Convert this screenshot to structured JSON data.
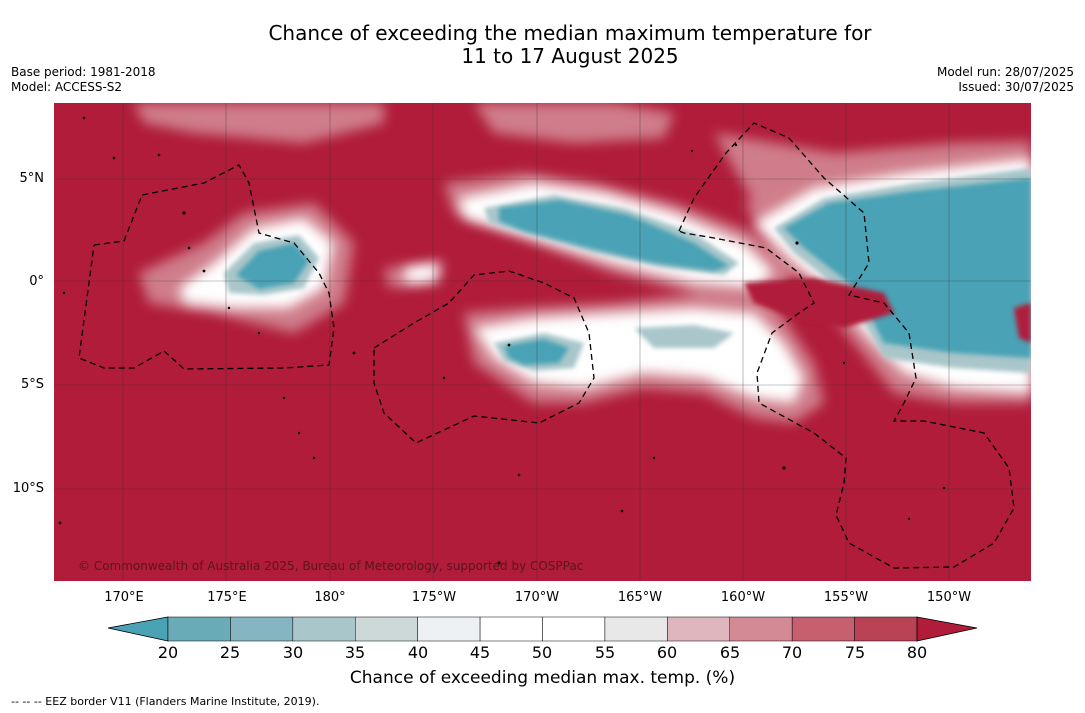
{
  "title": {
    "line1": "Chance of exceeding the median maximum temperature for",
    "line2": "11 to 17 August 2025"
  },
  "meta_left": {
    "base_period": "Base period: 1981-2018",
    "model": "Model: ACCESS-S2"
  },
  "meta_right": {
    "model_run": "Model run: 28/07/2025",
    "issued": "Issued: 30/07/2025"
  },
  "copyright": "© Commonwealth of Australia 2025, Bureau of Meteorology, supported by COSPPac",
  "axes": {
    "lon_ticks": [
      "170°E",
      "175°E",
      "180°",
      "175°W",
      "170°W",
      "165°W",
      "160°W",
      "155°W",
      "150°W"
    ],
    "lat_ticks": [
      "5°N",
      "0°",
      "5°S",
      "10°S"
    ]
  },
  "colorbar": {
    "ticks": [
      "20",
      "25",
      "30",
      "35",
      "40",
      "45",
      "50",
      "55",
      "60",
      "65",
      "70",
      "75",
      "80"
    ],
    "label": "Chance of exceeding median max. temp. (%)",
    "colors": [
      "#4aa2b5",
      "#6aabb8",
      "#86b5c2",
      "#a9c6ca",
      "#cdd8d9",
      "#edf1f3",
      "#ffffff",
      "#ffffff",
      "#e8e8e8",
      "#dfb6bd",
      "#d48a94",
      "#c7606e",
      "#b94355",
      "#b01c3a"
    ]
  },
  "map_colors": {
    "background": "#b01c3a",
    "high": "#b01c3a",
    "blue": "#4aa2b5"
  },
  "legend_note": "--  --  -- EEZ border V11 (Flanders Marine Institute, 2019)."
}
